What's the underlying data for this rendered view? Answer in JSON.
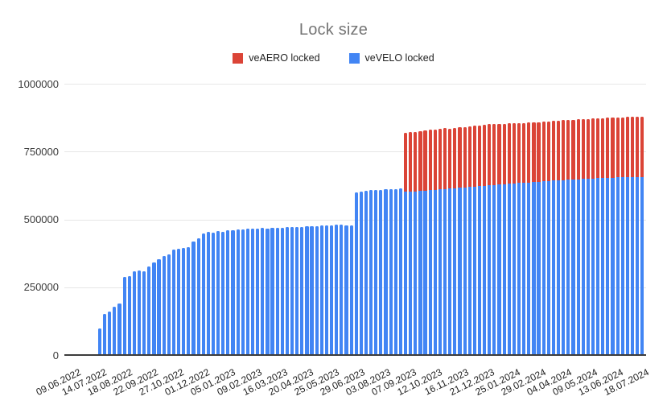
{
  "title": "Lock size",
  "legend": {
    "items": [
      {
        "label": "veAERO locked",
        "color": "#db4437"
      },
      {
        "label": "veVELO locked",
        "color": "#4285f4"
      }
    ]
  },
  "chart_data": {
    "type": "bar",
    "stacked": true,
    "title": "Lock size",
    "xlabel": "",
    "ylabel": "",
    "ylim": [
      0,
      1000000
    ],
    "y_ticks": [
      0,
      250000,
      500000,
      750000,
      1000000
    ],
    "y_tick_labels": [
      "0",
      "250000",
      "500000",
      "750000",
      "1000000"
    ],
    "grid": true,
    "legend_position": "top",
    "x_label_every": 5,
    "x_tick_labels_shown": [
      "09.06.2022",
      "14.07.2022",
      "18.08.2022",
      "22.09.2022",
      "27.10.2022",
      "01.12.2022",
      "05.01.2023",
      "09.02.2023",
      "16.03.2023",
      "20.04.2023",
      "25.05.2023",
      "29.06.2023",
      "03.08.2023",
      "07.09.2023",
      "12.10.2023",
      "16.11.2023",
      "21.12.2023",
      "25.01.2024",
      "29.02.2024",
      "04.04.2024",
      "09.05.2024",
      "13.06.2024",
      "18.07.2024"
    ],
    "categories": [
      "09.06.2022",
      "16.06.2022",
      "23.06.2022",
      "30.06.2022",
      "07.07.2022",
      "14.07.2022",
      "21.07.2022",
      "28.07.2022",
      "04.08.2022",
      "11.08.2022",
      "18.08.2022",
      "25.08.2022",
      "01.09.2022",
      "08.09.2022",
      "15.09.2022",
      "22.09.2022",
      "29.09.2022",
      "06.10.2022",
      "13.10.2022",
      "20.10.2022",
      "27.10.2022",
      "03.11.2022",
      "10.11.2022",
      "17.11.2022",
      "24.11.2022",
      "01.12.2022",
      "08.12.2022",
      "15.12.2022",
      "22.12.2022",
      "29.12.2022",
      "05.01.2023",
      "12.01.2023",
      "19.01.2023",
      "26.01.2023",
      "02.02.2023",
      "09.02.2023",
      "16.02.2023",
      "23.02.2023",
      "02.03.2023",
      "09.03.2023",
      "16.03.2023",
      "23.03.2023",
      "30.03.2023",
      "06.04.2023",
      "13.04.2023",
      "20.04.2023",
      "27.04.2023",
      "04.05.2023",
      "11.05.2023",
      "18.05.2023",
      "25.05.2023",
      "01.06.2023",
      "08.06.2023",
      "15.06.2023",
      "22.06.2023",
      "29.06.2023",
      "06.07.2023",
      "13.07.2023",
      "20.07.2023",
      "27.07.2023",
      "03.08.2023",
      "10.08.2023",
      "17.08.2023",
      "24.08.2023",
      "31.08.2023",
      "07.09.2023",
      "14.09.2023",
      "21.09.2023",
      "28.09.2023",
      "05.10.2023",
      "12.10.2023",
      "19.10.2023",
      "26.10.2023",
      "02.11.2023",
      "09.11.2023",
      "16.11.2023",
      "23.11.2023",
      "30.11.2023",
      "07.12.2023",
      "14.12.2023",
      "21.12.2023",
      "28.12.2023",
      "04.01.2024",
      "11.01.2024",
      "18.01.2024",
      "25.01.2024",
      "01.02.2024",
      "08.02.2024",
      "15.02.2024",
      "22.02.2024",
      "29.02.2024",
      "07.03.2024",
      "14.03.2024",
      "21.03.2024",
      "28.03.2024",
      "04.04.2024",
      "11.04.2024",
      "18.04.2024",
      "25.04.2024",
      "02.05.2024",
      "09.05.2024",
      "16.05.2024",
      "23.05.2024",
      "30.05.2024",
      "06.06.2024",
      "13.06.2024",
      "20.06.2024",
      "27.06.2024",
      "04.07.2024",
      "11.07.2024",
      "18.07.2024"
    ],
    "series": [
      {
        "name": "veAERO locked",
        "color": "#db4437",
        "values": [
          0,
          0,
          0,
          0,
          0,
          0,
          0,
          0,
          0,
          0,
          0,
          0,
          0,
          0,
          0,
          0,
          0,
          0,
          0,
          0,
          0,
          0,
          0,
          0,
          0,
          0,
          0,
          0,
          0,
          0,
          0,
          0,
          0,
          0,
          0,
          0,
          0,
          0,
          0,
          0,
          0,
          0,
          0,
          0,
          0,
          0,
          0,
          0,
          0,
          0,
          0,
          0,
          0,
          0,
          0,
          0,
          0,
          0,
          0,
          0,
          0,
          0,
          217000,
          219000,
          218000,
          222000,
          223000,
          224000,
          223000,
          224000,
          225000,
          221000,
          224000,
          225000,
          224000,
          225000,
          226000,
          224000,
          225000,
          226000,
          225000,
          224000,
          224000,
          223000,
          223000,
          221000,
          221000,
          221000,
          220000,
          220000,
          220000,
          220000,
          220000,
          220000,
          220000,
          220000,
          220000,
          220000,
          220000,
          220000,
          220000,
          220000,
          220000,
          220000,
          221000,
          221000,
          221000,
          221000,
          221000,
          222000,
          222000
        ]
      },
      {
        "name": "veVELO locked",
        "color": "#4285f4",
        "values": [
          97000,
          150000,
          161000,
          177000,
          190000,
          287000,
          291000,
          309000,
          312000,
          310000,
          325000,
          340000,
          352000,
          364000,
          371000,
          390000,
          392000,
          395000,
          398000,
          418000,
          430000,
          447000,
          455000,
          450000,
          456000,
          455000,
          459000,
          461000,
          462000,
          464000,
          465000,
          466000,
          467000,
          468000,
          467000,
          469000,
          470000,
          470000,
          471000,
          471000,
          472000,
          473000,
          474000,
          475000,
          476000,
          477000,
          478000,
          479000,
          480000,
          481000,
          477000,
          477000,
          600000,
          603000,
          605000,
          607000,
          608000,
          609000,
          610000,
          611000,
          612000,
          613000,
          601000,
          602000,
          603000,
          604000,
          605000,
          607000,
          608000,
          610000,
          611000,
          613000,
          614000,
          616000,
          617000,
          619000,
          620000,
          622000,
          623000,
          625000,
          626000,
          628000,
          629000,
          631000,
          632000,
          634000,
          635000,
          636000,
          638000,
          639000,
          640000,
          642000,
          643000,
          644000,
          645000,
          646000,
          647000,
          648000,
          649000,
          650000,
          651000,
          652000,
          653000,
          654000,
          654000,
          655000,
          655000,
          656000,
          656000,
          656000,
          656000
        ]
      }
    ]
  }
}
